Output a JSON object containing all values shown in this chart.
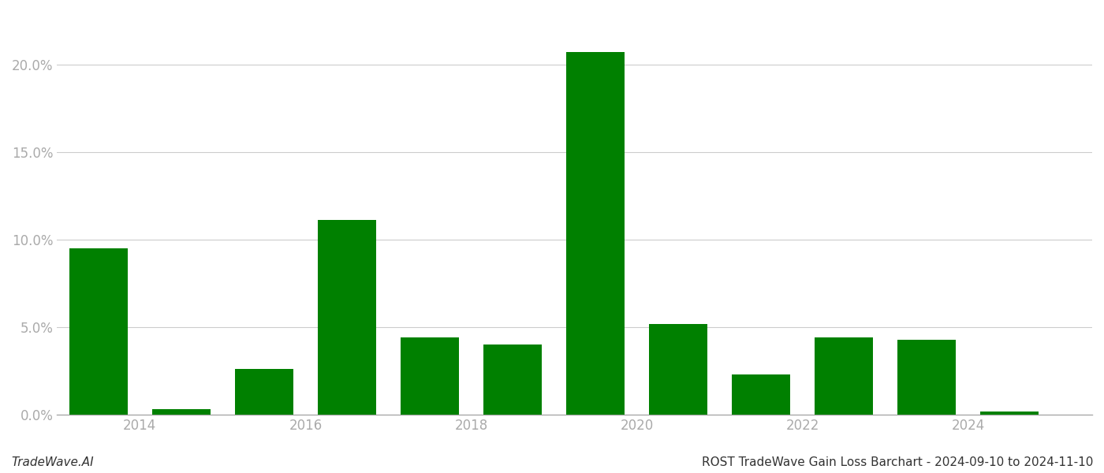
{
  "years": [
    2013,
    2014,
    2015,
    2016,
    2017,
    2018,
    2019,
    2020,
    2021,
    2022,
    2023,
    2024
  ],
  "values": [
    0.095,
    0.003,
    0.026,
    0.111,
    0.044,
    0.04,
    0.207,
    0.052,
    0.023,
    0.044,
    0.043,
    0.002
  ],
  "bar_color": "#008000",
  "background_color": "#ffffff",
  "ylim_min": 0.0,
  "ylim_max": 0.23,
  "ytick_values": [
    0.0,
    0.05,
    0.1,
    0.15,
    0.2
  ],
  "ytick_labels": [
    "0.0%",
    "5.0%",
    "10.0%",
    "15.0%",
    "20.0%"
  ],
  "xtick_positions": [
    2013.5,
    2015.5,
    2017.5,
    2019.5,
    2021.5,
    2023.5
  ],
  "xtick_labels": [
    "2014",
    "2016",
    "2018",
    "2020",
    "2022",
    "2024"
  ],
  "xlim_min": 2012.5,
  "xlim_max": 2025.0,
  "grid_color": "#cccccc",
  "axis_color": "#aaaaaa",
  "tick_label_color": "#aaaaaa",
  "footer_left": "TradeWave.AI",
  "footer_right": "ROST TradeWave Gain Loss Barchart - 2024-09-10 to 2024-11-10",
  "footer_fontsize": 11,
  "bar_width": 0.7
}
